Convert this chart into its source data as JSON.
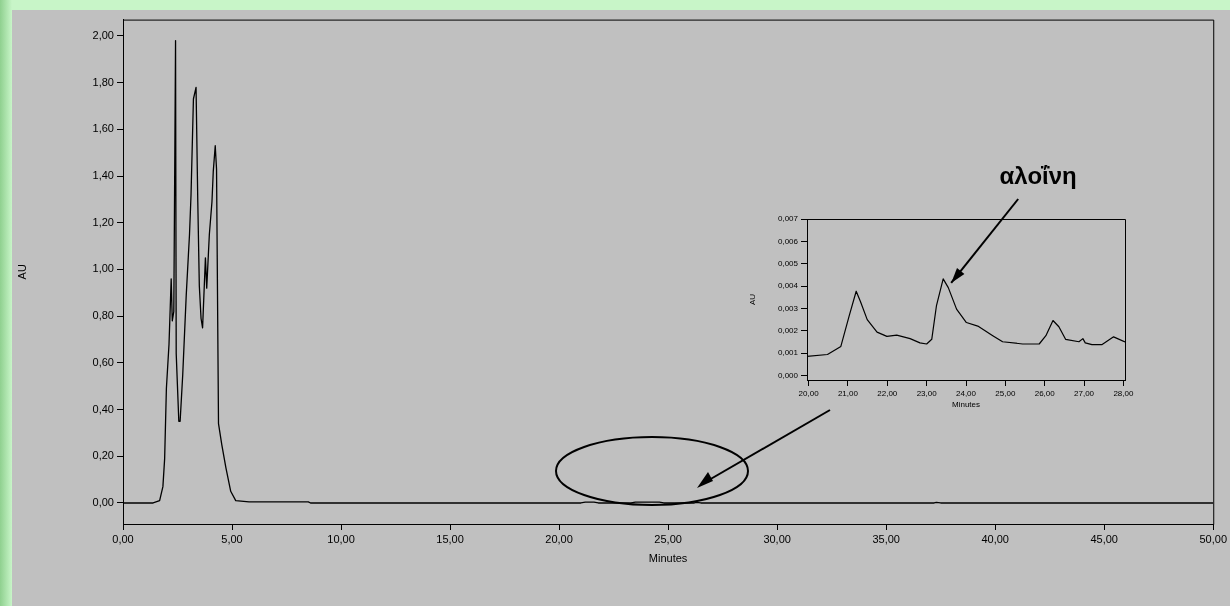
{
  "chart_data": [
    {
      "type": "line",
      "xlabel": "Minutes",
      "ylabel": "AU",
      "xlim": [
        0,
        50
      ],
      "ylim": [
        -0.09,
        2.07
      ],
      "grid": false,
      "legend": false,
      "xticks": [
        {
          "value": 0,
          "label": "0,00"
        },
        {
          "value": 5,
          "label": "5,00"
        },
        {
          "value": 10,
          "label": "10,00"
        },
        {
          "value": 15,
          "label": "15,00"
        },
        {
          "value": 20,
          "label": "20,00"
        },
        {
          "value": 25,
          "label": "25,00"
        },
        {
          "value": 30,
          "label": "30,00"
        },
        {
          "value": 35,
          "label": "35,00"
        },
        {
          "value": 40,
          "label": "40,00"
        },
        {
          "value": 45,
          "label": "45,00"
        },
        {
          "value": 50,
          "label": "50,00"
        }
      ],
      "yticks": [
        {
          "value": 0,
          "label": "0,00"
        },
        {
          "value": 0.2,
          "label": "0,20"
        },
        {
          "value": 0.4,
          "label": "0,40"
        },
        {
          "value": 0.6,
          "label": "0,60"
        },
        {
          "value": 0.8,
          "label": "0,80"
        },
        {
          "value": 1,
          "label": "1,00"
        },
        {
          "value": 1.2,
          "label": "1,20"
        },
        {
          "value": 1.4,
          "label": "1,40"
        },
        {
          "value": 1.6,
          "label": "1,60"
        },
        {
          "value": 1.8,
          "label": "1,80"
        },
        {
          "value": 2,
          "label": "2,00"
        }
      ],
      "series": [
        {
          "color": "#000000",
          "x": [
            0,
            1.38,
            1.68,
            1.83,
            1.91,
            1.99,
            2.11,
            2.21,
            2.26,
            2.33,
            2.41,
            2.44,
            2.56,
            2.62,
            2.74,
            2.9,
            3.05,
            3.12,
            3.23,
            3.35,
            3.43,
            3.5,
            3.58,
            3.65,
            3.78,
            3.84,
            3.96,
            4.08,
            4.14,
            4.23,
            4.29,
            4.38,
            4.53,
            4.72,
            4.94,
            5.17,
            5.78,
            8.5,
            8.6,
            21,
            21.2,
            21.6,
            21.8,
            23.3,
            23.5,
            24.6,
            24.8,
            26.2,
            26.3,
            26.5,
            37.2,
            37.3,
            37.5,
            50
          ],
          "values": [
            0,
            0,
            0.01,
            0.07,
            0.19,
            0.49,
            0.68,
            0.96,
            0.78,
            0.82,
            1.98,
            0.64,
            0.35,
            0.35,
            0.55,
            0.89,
            1.15,
            1.32,
            1.73,
            1.78,
            1.29,
            0.93,
            0.79,
            0.75,
            1.05,
            0.92,
            1.15,
            1.29,
            1.42,
            1.53,
            1.43,
            0.34,
            0.25,
            0.15,
            0.05,
            0.01,
            0.005,
            0.005,
            0,
            0,
            0.004,
            0.004,
            0,
            0,
            0.004,
            0.004,
            0,
            0,
            0.003,
            0,
            0,
            0.003,
            0,
            0
          ]
        }
      ]
    },
    {
      "type": "line",
      "xlabel": "Minutes",
      "ylabel": "AU",
      "xlim": [
        19.96,
        28.04
      ],
      "ylim": [
        -0.0002,
        0.007
      ],
      "grid": false,
      "legend": false,
      "xticks": [
        {
          "value": 20,
          "label": "20,00"
        },
        {
          "value": 21,
          "label": "21,00"
        },
        {
          "value": 22,
          "label": "22,00"
        },
        {
          "value": 23,
          "label": "23,00"
        },
        {
          "value": 24,
          "label": "24,00"
        },
        {
          "value": 25,
          "label": "25,00"
        },
        {
          "value": 26,
          "label": "26,00"
        },
        {
          "value": 27,
          "label": "27,00"
        },
        {
          "value": 28,
          "label": "28,00"
        }
      ],
      "yticks": [
        {
          "value": 0,
          "label": "0,000"
        },
        {
          "value": 0.001,
          "label": "0,001"
        },
        {
          "value": 0.002,
          "label": "0,002"
        },
        {
          "value": 0.003,
          "label": "0,003"
        },
        {
          "value": 0.004,
          "label": "0,004"
        },
        {
          "value": 0.005,
          "label": "0,005"
        },
        {
          "value": 0.006,
          "label": "0,006"
        },
        {
          "value": 0.007,
          "label": "0,007"
        }
      ],
      "annotations": [
        {
          "text": "αλοΐνη",
          "x": 23.42,
          "y": 0.00432
        }
      ],
      "series": [
        {
          "color": "#000000",
          "x": [
            19.96,
            20.48,
            20.82,
            21.03,
            21.21,
            21.32,
            21.49,
            21.74,
            21.99,
            22.24,
            22.58,
            22.83,
            23,
            23.13,
            23.25,
            23.42,
            23.55,
            23.76,
            24.01,
            24.3,
            24.68,
            24.93,
            25.44,
            25.86,
            26.03,
            26.21,
            26.36,
            26.53,
            26.87,
            26.97,
            27.03,
            27.2,
            27.45,
            27.75,
            28.04
          ],
          "values": [
            0.00086,
            0.00094,
            0.0013,
            0.00266,
            0.00377,
            0.0033,
            0.0025,
            0.00194,
            0.00175,
            0.00181,
            0.00165,
            0.00146,
            0.00141,
            0.00162,
            0.00313,
            0.00432,
            0.00393,
            0.00297,
            0.00237,
            0.00221,
            0.00178,
            0.00151,
            0.00141,
            0.00141,
            0.00178,
            0.00246,
            0.00218,
            0.00162,
            0.00151,
            0.00165,
            0.00146,
            0.00138,
            0.00138,
            0.00173,
            0.0015
          ]
        }
      ]
    }
  ]
}
